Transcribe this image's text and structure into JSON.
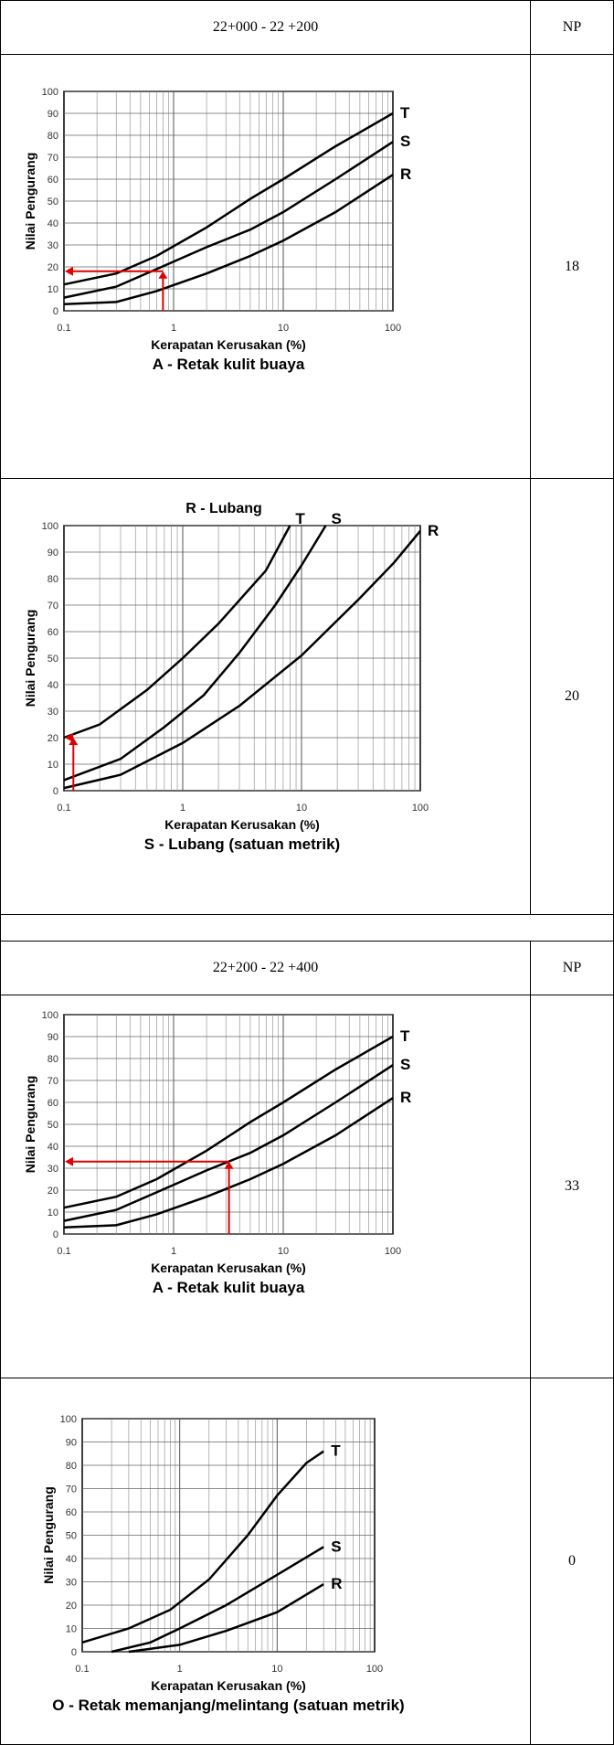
{
  "sections": [
    {
      "header": {
        "range": "22+000 - 22 +200",
        "col": "NP"
      },
      "rows": [
        {
          "np": "18",
          "chart_data": {
            "type": "line",
            "title": "",
            "caption": "A -  Retak kulit buaya",
            "xlabel": "Kerapatan Kerusakan (%)",
            "ylabel": "Nilai Pengurang",
            "x_scale": "log",
            "xlim": [
              0.1,
              100
            ],
            "ylim": [
              0,
              100
            ],
            "x_ticks": [
              "0.1",
              "1",
              "10",
              "100"
            ],
            "y_ticks": [
              "0",
              "10",
              "20",
              "30",
              "40",
              "50",
              "60",
              "70",
              "80",
              "90",
              "100"
            ],
            "series": [
              {
                "name": "T",
                "x": [
                  0.1,
                  0.3,
                  0.7,
                  2,
                  5,
                  10,
                  30,
                  100
                ],
                "y": [
                  12,
                  17,
                  25,
                  38,
                  51,
                  60,
                  75,
                  90
                ]
              },
              {
                "name": "S",
                "x": [
                  0.1,
                  0.3,
                  0.7,
                  2,
                  5,
                  10,
                  30,
                  100
                ],
                "y": [
                  6,
                  11,
                  19,
                  29,
                  37,
                  45,
                  60,
                  77
                ]
              },
              {
                "name": "R",
                "x": [
                  0.1,
                  0.3,
                  0.7,
                  2,
                  5,
                  10,
                  30,
                  100
                ],
                "y": [
                  3,
                  4,
                  9,
                  17,
                  25,
                  32,
                  45,
                  62
                ]
              }
            ],
            "annotation": {
              "x": 0.8,
              "y": 18
            }
          }
        },
        {
          "np": "20",
          "chart_data": {
            "type": "line",
            "title": "R -  Lubang",
            "caption": "S -  Lubang (satuan metrik)",
            "xlabel": "Kerapatan Kerusakan (%)",
            "ylabel": "Nilai Pengurang",
            "x_scale": "log",
            "xlim": [
              0.1,
              100
            ],
            "ylim": [
              0,
              100
            ],
            "x_ticks": [
              "0.1",
              "1",
              "10",
              "100"
            ],
            "y_ticks": [
              "0",
              "10",
              "20",
              "30",
              "40",
              "50",
              "60",
              "70",
              "80",
              "90",
              "100"
            ],
            "series": [
              {
                "name": "T",
                "x": [
                  0.1,
                  0.2,
                  0.5,
                  1,
                  2,
                  5,
                  8
                ],
                "y": [
                  20,
                  25,
                  38,
                  50,
                  63,
                  83,
                  100
                ]
              },
              {
                "name": "S",
                "x": [
                  0.1,
                  0.3,
                  0.7,
                  1.5,
                  3,
                  6,
                  10,
                  16
                ],
                "y": [
                  4,
                  12,
                  24,
                  36,
                  52,
                  70,
                  85,
                  100
                ]
              },
              {
                "name": "R",
                "x": [
                  0.1,
                  0.3,
                  1,
                  3,
                  10,
                  30,
                  60,
                  100
                ],
                "y": [
                  1,
                  6,
                  18,
                  32,
                  51,
                  72,
                  86,
                  98
                ]
              }
            ],
            "annotation": {
              "x": 0.12,
              "y": 20
            }
          }
        }
      ]
    },
    {
      "header": {
        "range": "22+200 - 22 +400",
        "col": "NP"
      },
      "rows": [
        {
          "np": "33",
          "chart_data": {
            "type": "line",
            "title": "",
            "caption": "A -  Retak kulit buaya",
            "xlabel": "Kerapatan Kerusakan (%)",
            "ylabel": "Nilai Pengurang",
            "x_scale": "log",
            "xlim": [
              0.1,
              100
            ],
            "ylim": [
              0,
              100
            ],
            "x_ticks": [
              "0.1",
              "1",
              "10",
              "100"
            ],
            "y_ticks": [
              "0",
              "10",
              "20",
              "30",
              "40",
              "50",
              "60",
              "70",
              "80",
              "90",
              "100"
            ],
            "series": [
              {
                "name": "T",
                "x": [
                  0.1,
                  0.3,
                  0.7,
                  2,
                  5,
                  10,
                  30,
                  100
                ],
                "y": [
                  12,
                  17,
                  25,
                  38,
                  51,
                  60,
                  75,
                  90
                ]
              },
              {
                "name": "S",
                "x": [
                  0.1,
                  0.3,
                  0.7,
                  2,
                  5,
                  10,
                  30,
                  100
                ],
                "y": [
                  6,
                  11,
                  19,
                  29,
                  37,
                  45,
                  60,
                  77
                ]
              },
              {
                "name": "R",
                "x": [
                  0.1,
                  0.3,
                  0.7,
                  2,
                  5,
                  10,
                  30,
                  100
                ],
                "y": [
                  3,
                  4,
                  9,
                  17,
                  25,
                  32,
                  45,
                  62
                ]
              }
            ],
            "annotation": {
              "x": 3.2,
              "y": 33
            }
          }
        },
        {
          "np": "0",
          "chart_data": {
            "type": "line",
            "title": "",
            "caption": "O - Retak memanjang/melintang (satuan metrik)",
            "xlabel": "Kerapatan Kerusakan (%)",
            "ylabel": "Nilai Pengurang",
            "x_scale": "log",
            "xlim": [
              0.1,
              100
            ],
            "ylim": [
              0,
              100
            ],
            "x_ticks": [
              "0.1",
              "1",
              "10",
              "100"
            ],
            "y_ticks": [
              "0",
              "10",
              "20",
              "30",
              "40",
              "50",
              "60",
              "70",
              "80",
              "90",
              "100"
            ],
            "series": [
              {
                "name": "T",
                "x": [
                  0.1,
                  0.3,
                  0.8,
                  2,
                  5,
                  10,
                  20,
                  30
                ],
                "y": [
                  4,
                  10,
                  18,
                  31,
                  50,
                  67,
                  81,
                  86
                ]
              },
              {
                "name": "S",
                "x": [
                  0.2,
                  0.5,
                  1,
                  3,
                  10,
                  30
                ],
                "y": [
                  0,
                  4,
                  10,
                  20,
                  33,
                  45
                ]
              },
              {
                "name": "R",
                "x": [
                  0.3,
                  1,
                  3,
                  10,
                  30
                ],
                "y": [
                  0,
                  3,
                  9,
                  17,
                  29
                ]
              }
            ],
            "annotation": null
          }
        }
      ]
    }
  ]
}
